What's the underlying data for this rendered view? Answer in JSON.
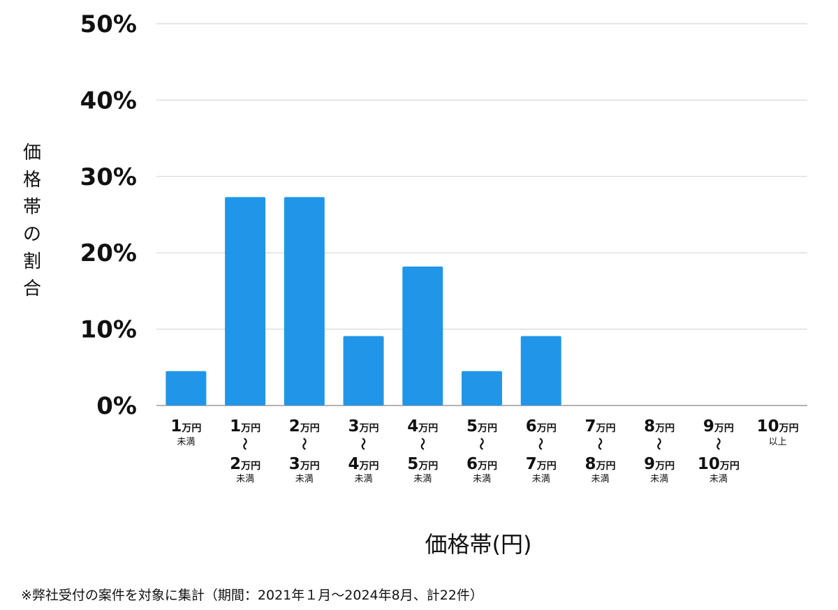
{
  "chart_data": {
    "type": "bar",
    "title": "",
    "ylabel": "価格帯の割合",
    "xlabel": "価格帯(円)",
    "ylim": [
      0,
      50
    ],
    "yticks": [
      "0%",
      "10%",
      "20%",
      "30%",
      "40%",
      "50%"
    ],
    "ytick_values": [
      0,
      10,
      20,
      30,
      40,
      50
    ],
    "categories": [
      {
        "from": "1",
        "to": "",
        "unit": "万円",
        "note": "未満"
      },
      {
        "from": "1",
        "to": "2",
        "unit": "万円",
        "note": "未満"
      },
      {
        "from": "2",
        "to": "3",
        "unit": "万円",
        "note": "未満"
      },
      {
        "from": "3",
        "to": "4",
        "unit": "万円",
        "note": "未満"
      },
      {
        "from": "4",
        "to": "5",
        "unit": "万円",
        "note": "未満"
      },
      {
        "from": "5",
        "to": "6",
        "unit": "万円",
        "note": "未満"
      },
      {
        "from": "6",
        "to": "7",
        "unit": "万円",
        "note": "未満"
      },
      {
        "from": "7",
        "to": "8",
        "unit": "万円",
        "note": "未満"
      },
      {
        "from": "8",
        "to": "9",
        "unit": "万円",
        "note": "未満"
      },
      {
        "from": "9",
        "to": "10",
        "unit": "万円",
        "note": "未満"
      },
      {
        "from": "10",
        "to": "",
        "unit": "万円",
        "note": "以上"
      }
    ],
    "values": [
      4.5,
      27.3,
      27.3,
      9.1,
      18.2,
      4.5,
      9.1,
      0,
      0,
      0,
      0
    ],
    "range_glyph": "〜",
    "bar_color": "#2196e8",
    "grid": true
  },
  "footnote": "※弊社受付の案件を対象に集計（期間：2021年１月〜2024年8月、計22件）"
}
